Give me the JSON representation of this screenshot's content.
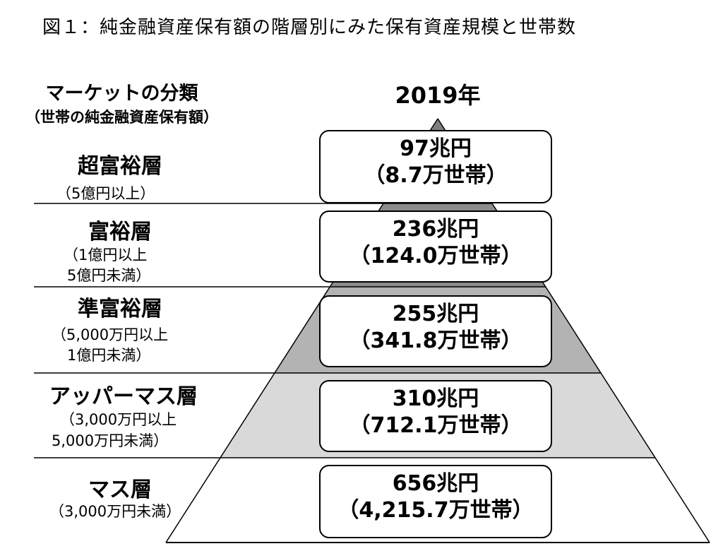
{
  "title": "図１：純金融資産保有額の階層別にみた保有資産規模と世帯数",
  "header": {
    "market_label": "マーケットの分類",
    "market_sub": "（世帯の純金融資産保有額）",
    "year": "2019年"
  },
  "colors": {
    "tier_fill": [
      "#7f7f7f",
      "#8c8c8c",
      "#b3b3b3",
      "#d9d9d9",
      "#ffffff"
    ],
    "line": "#000000"
  },
  "tiers": [
    {
      "name": "超富裕層",
      "range_lines": [
        "（5億円以上）"
      ],
      "amount": "97兆円",
      "households": "（8.7万世帯）"
    },
    {
      "name": "富裕層",
      "range_lines": [
        "（1億円以上",
        "5億円未満）"
      ],
      "amount": "236兆円",
      "households": "（124.0万世帯）"
    },
    {
      "name": "準富裕層",
      "range_lines": [
        "（5,000万円以上",
        "1億円未満）"
      ],
      "amount": "255兆円",
      "households": "（341.8万世帯）"
    },
    {
      "name": "アッパーマス層",
      "range_lines": [
        "（3,000万円以上",
        "5,000万円未満）"
      ],
      "amount": "310兆円",
      "households": "（712.1万世帯）"
    },
    {
      "name": "マス層",
      "range_lines": [
        "（3,000万円未満）"
      ],
      "amount": "656兆円",
      "households": "（4,215.7万世帯）"
    }
  ]
}
